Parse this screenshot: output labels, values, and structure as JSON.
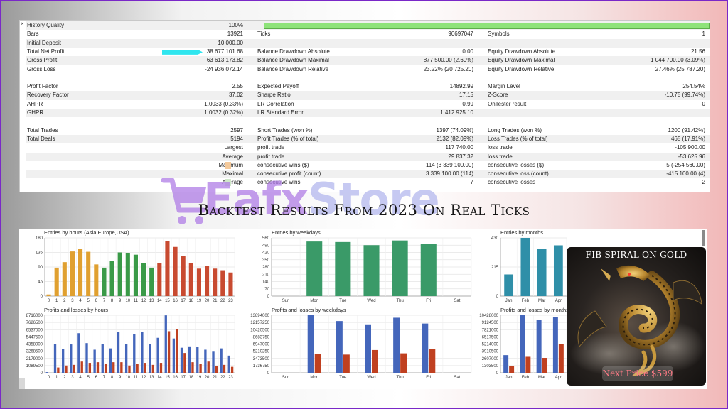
{
  "report": {
    "close_glyph": "×",
    "row0": {
      "label": "History Quality",
      "value": "100%"
    },
    "row1": {
      "label": "Bars",
      "value": "13921",
      "label2": "Ticks",
      "value2": "90697047",
      "label3": "Symbols",
      "value3": "1"
    },
    "row2": {
      "label": "Initial Deposit",
      "value": "10 000.00"
    },
    "row3": {
      "label": "Total Net Profit",
      "value": "38 677 101.68",
      "label2": "Balance Drawdown Absolute",
      "value2": "0.00",
      "label3": "Equity Drawdown Absolute",
      "value3": "21.56"
    },
    "row4": {
      "label": "Gross Profit",
      "value": "63 613 173.82",
      "label2": "Balance Drawdown Maximal",
      "value2": "877 500.00 (2.60%)",
      "label3": "Equity Drawdown Maximal",
      "value3": "1 044 700.00 (3.09%)"
    },
    "row5": {
      "label": "Gross Loss",
      "value": "-24 936 072.14",
      "label2": "Balance Drawdown Relative",
      "value2": "23.22% (20 725.20)",
      "label3": "Equity Drawdown Relative",
      "value3": "27.46% (25 787.20)"
    },
    "row7": {
      "label": "Profit Factor",
      "value": "2.55",
      "label2": "Expected Payoff",
      "value2": "14892.99",
      "label3": "Margin Level",
      "value3": "254.54%"
    },
    "row8": {
      "label": "Recovery Factor",
      "value": "37.02",
      "label2": "Sharpe Ratio",
      "value2": "17.15",
      "label3": "Z-Score",
      "value3": "-10.75 (99.74%)"
    },
    "row9": {
      "label": "AHPR",
      "value": "1.0033 (0.33%)",
      "label2": "LR Correlation",
      "value2": "0.99",
      "label3": "OnTester result",
      "value3": "0"
    },
    "row10": {
      "label": "GHPR",
      "value": "1.0032 (0.32%)",
      "label2": "LR Standard Error",
      "value2": "1 412 925.10"
    },
    "row12": {
      "label": "Total Trades",
      "value": "2597",
      "label2": "Short Trades (won %)",
      "value2": "1397 (74.09%)",
      "label3": "Long Trades (won %)",
      "value3": "1200 (91.42%)"
    },
    "row13": {
      "label": "Total Deals",
      "value": "5194",
      "label2": "Profit Trades (% of total)",
      "value2": "2132 (82.09%)",
      "label3": "Loss Trades (% of total)",
      "value3": "465 (17.91%)"
    },
    "row14": {
      "value": "Largest",
      "label2": "profit trade",
      "value2": "117 740.00",
      "label3": "loss trade",
      "value3": "-105 900.00"
    },
    "row15": {
      "value": "Average",
      "label2": "profit trade",
      "value2": "29 837.32",
      "label3": "loss trade",
      "value3": "-53 625.96"
    },
    "row16": {
      "value": "Maximum",
      "label2": "consecutive wins ($)",
      "value2": "114 (3 339 100.00)",
      "label3": "consecutive losses ($)",
      "value3": "5 (-254 560.00)"
    },
    "row17": {
      "value": "Maximal",
      "label2": "consecutive profit (count)",
      "value2": "3 339 100.00 (114)",
      "label3": "consecutive loss (count)",
      "value3": "-415 100.00 (4)"
    },
    "row18": {
      "value": "Average",
      "label2": "consecutive wins",
      "value2": "7",
      "label3": "consecutive losses",
      "value3": "2"
    }
  },
  "watermark": {
    "brand1": "Eafx",
    "brand2": "Store"
  },
  "headline": "Backtest Results From 2023 On Real Ticks",
  "promo": {
    "title": "FIB SPIRAL ON GOLD",
    "price": "Next Price $599"
  },
  "colors": {
    "hq_bar": "#8ee37a",
    "hour_orange": "#e0a030",
    "hour_green": "#3a9a48",
    "hour_red": "#c84a30",
    "weekday_green": "#3a9a68",
    "month_teal": "#2f8fa8",
    "pl_blue": "#4466bb",
    "pl_red": "#c04020"
  },
  "chart_data": [
    {
      "type": "bar",
      "title": "Entries by hours (Asia,Europe,USA)",
      "categories": [
        "0",
        "1",
        "2",
        "3",
        "4",
        "5",
        "6",
        "7",
        "8",
        "9",
        "10",
        "11",
        "12",
        "13",
        "14",
        "15",
        "16",
        "17",
        "18",
        "19",
        "20",
        "21",
        "22",
        "23"
      ],
      "ylim": [
        0,
        180
      ],
      "yticks": [
        "180",
        "135",
        "90",
        "45",
        "0"
      ],
      "values": [
        5,
        88,
        105,
        138,
        145,
        137,
        98,
        88,
        108,
        135,
        133,
        128,
        103,
        88,
        103,
        170,
        152,
        125,
        103,
        85,
        93,
        85,
        80,
        73
      ],
      "colors": [
        "#e0a030",
        "#e0a030",
        "#e0a030",
        "#e0a030",
        "#e0a030",
        "#e0a030",
        "#e0a030",
        "#3a9a48",
        "#3a9a48",
        "#3a9a48",
        "#3a9a48",
        "#3a9a48",
        "#3a9a48",
        "#3a9a48",
        "#c84a30",
        "#c84a30",
        "#c84a30",
        "#c84a30",
        "#c84a30",
        "#c84a30",
        "#c84a30",
        "#c84a30",
        "#c84a30",
        "#c84a30"
      ]
    },
    {
      "type": "bar",
      "title": "Entries by weekdays",
      "categories": [
        "Sun",
        "Mon",
        "Tue",
        "Wed",
        "Thu",
        "Fri",
        "Sat"
      ],
      "ylim": [
        0,
        560
      ],
      "yticks": [
        "560",
        "490",
        "420",
        "350",
        "280",
        "210",
        "140",
        "70",
        "0"
      ],
      "values": [
        0,
        525,
        520,
        490,
        535,
        505,
        0
      ],
      "colors": [
        "#3a9a68",
        "#3a9a68",
        "#3a9a68",
        "#3a9a68",
        "#3a9a68",
        "#3a9a68",
        "#3a9a68"
      ]
    },
    {
      "type": "bar",
      "title": "Entries by months",
      "categories": [
        "Jan",
        "Feb",
        "Mar",
        "Apr"
      ],
      "ylim": [
        0,
        430
      ],
      "yticks": [
        "430",
        "215",
        "0"
      ],
      "values": [
        160,
        430,
        350,
        375
      ],
      "colors": [
        "#2f8fa8",
        "#2f8fa8",
        "#2f8fa8",
        "#2f8fa8"
      ]
    },
    {
      "type": "bar",
      "title": "Profits and losses by hours",
      "categories": [
        "0",
        "1",
        "2",
        "3",
        "4",
        "5",
        "6",
        "7",
        "8",
        "9",
        "10",
        "11",
        "12",
        "13",
        "14",
        "15",
        "16",
        "17",
        "18",
        "19",
        "20",
        "21",
        "22",
        "23"
      ],
      "ylim": [
        0,
        8716000
      ],
      "yticks": [
        "8716000",
        "7626500",
        "6537000",
        "5447500",
        "4358000",
        "3268500",
        "2179000",
        "1089500",
        "0"
      ],
      "series": [
        {
          "values": [
            100000,
            4400000,
            3600000,
            4300000,
            6000000,
            4500000,
            3500000,
            4400000,
            3700000,
            6200000,
            4400000,
            5900000,
            6200000,
            4400000,
            5300000,
            8700000,
            5200000,
            3800000,
            4000000,
            3900000,
            3500000,
            3200000,
            3700000,
            2600000
          ]
        },
        {
          "values": [
            0,
            800000,
            1100000,
            1200000,
            1700000,
            1500000,
            1600000,
            1400000,
            1600000,
            1600000,
            1100000,
            1300000,
            1500000,
            1200000,
            1500000,
            6300000,
            6600000,
            3000000,
            1600000,
            1300000,
            1700000,
            1000000,
            1200000,
            900000
          ]
        }
      ]
    },
    {
      "type": "bar",
      "title": "Profits and losses by weekdays",
      "categories": [
        "Sun",
        "Mon",
        "Tue",
        "Wed",
        "Thu",
        "Fri",
        "Sat"
      ],
      "ylim": [
        0,
        13894000
      ],
      "yticks": [
        "13894000",
        "12157250",
        "10420500",
        "8683750",
        "6947000",
        "5210250",
        "3473500",
        "1736750",
        "0"
      ],
      "series": [
        {
          "values": [
            0,
            13894000,
            12500000,
            11700000,
            13300000,
            11900000,
            0
          ]
        },
        {
          "values": [
            0,
            4500000,
            4400000,
            5500000,
            4700000,
            5700000,
            0
          ]
        }
      ]
    },
    {
      "type": "bar",
      "title": "Profits and losses by months",
      "categories": [
        "Jan",
        "Feb",
        "Mar",
        "Apr"
      ],
      "ylim": [
        0,
        10428000
      ],
      "yticks": [
        "10428000",
        "9124500",
        "7821000",
        "6517500",
        "5214000",
        "3910500",
        "2607000",
        "1303500",
        "0"
      ],
      "series": [
        {
          "values": [
            3200000,
            10428000,
            9600000,
            10100000
          ]
        },
        {
          "values": [
            1200000,
            2900000,
            2700000,
            5200000
          ]
        }
      ]
    }
  ]
}
